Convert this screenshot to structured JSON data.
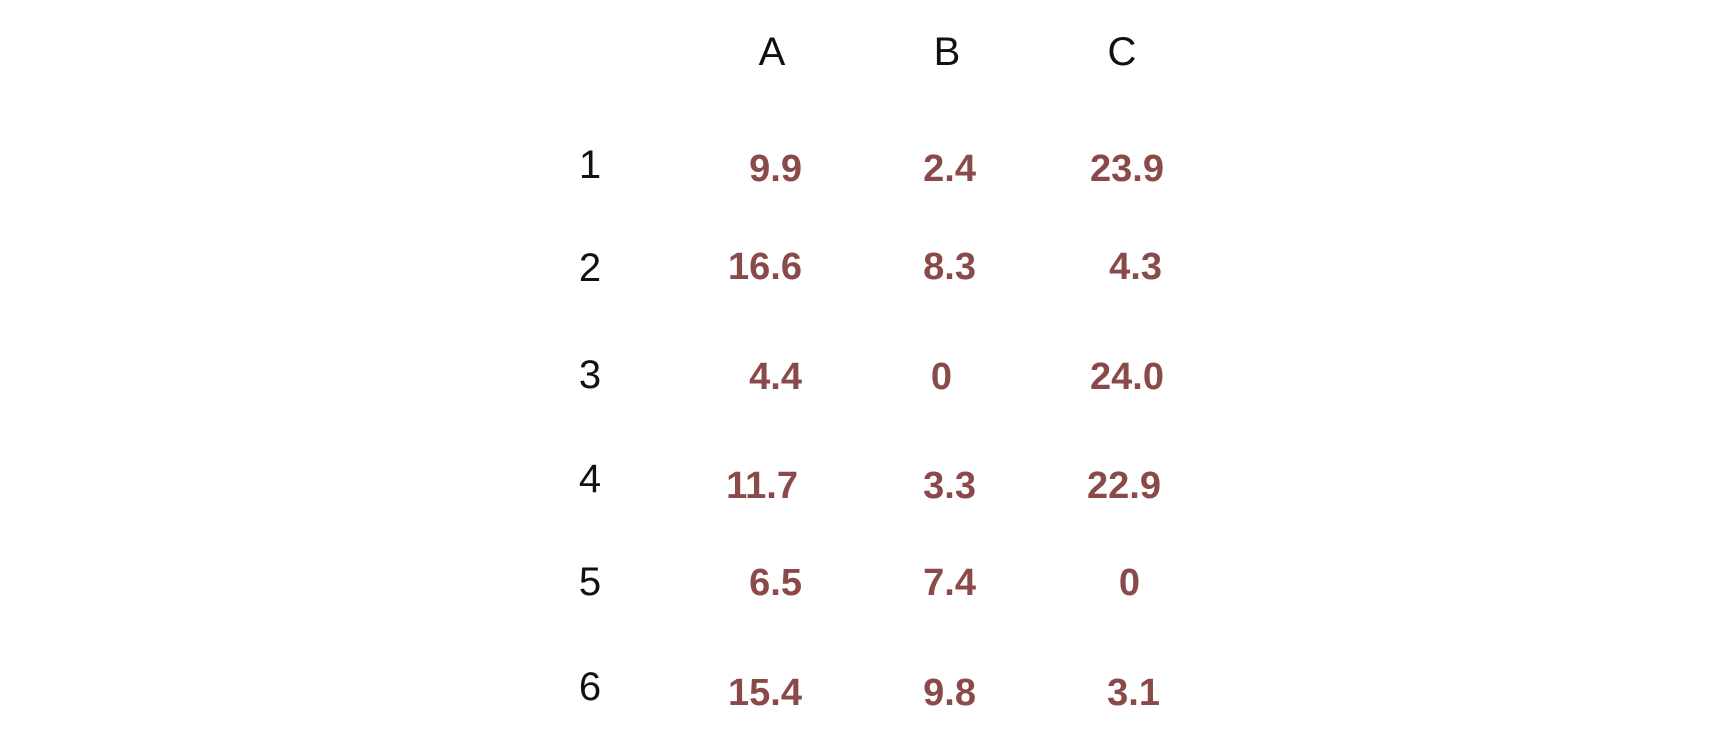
{
  "colors": {
    "value_text": "#8b4a4a",
    "label_text": "#111111",
    "background": "#ffffff"
  },
  "columns": [
    "A",
    "B",
    "C"
  ],
  "rows": [
    {
      "label": "1",
      "values": [
        "9.9",
        "2.4",
        "23.9"
      ]
    },
    {
      "label": "2",
      "values": [
        "16.6",
        "8.3",
        "4.3"
      ]
    },
    {
      "label": "3",
      "values": [
        "4.4",
        "0",
        "24.0"
      ]
    },
    {
      "label": "4",
      "values": [
        "11.7",
        "3.3",
        "22.9"
      ]
    },
    {
      "label": "5",
      "values": [
        "6.5",
        "7.4",
        "0"
      ]
    },
    {
      "label": "6",
      "values": [
        "15.4",
        "9.8",
        "3.1"
      ]
    }
  ]
}
